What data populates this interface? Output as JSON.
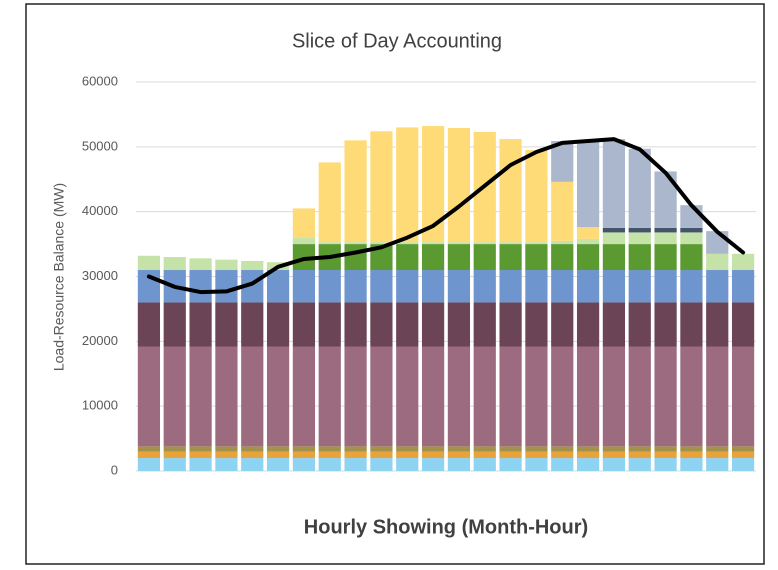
{
  "chart_data": {
    "type": "bar",
    "stacked": true,
    "title": "Slice of Day Accounting",
    "y_label": "Load-Resource Balance (MW)",
    "x_label": "Hourly Showing (Month-Hour)",
    "categories": [
      null,
      null,
      null,
      null,
      null,
      null,
      null,
      null,
      null,
      null,
      null,
      null,
      null,
      null,
      null,
      null,
      null,
      null,
      null,
      null,
      null,
      null,
      null,
      null
    ],
    "ylim": [
      0,
      60000
    ],
    "yticks": [
      0,
      10000,
      20000,
      30000,
      40000,
      50000,
      60000
    ],
    "grid": true,
    "series": [
      {
        "color": "#8fd3f2",
        "values": [
          2000,
          2000,
          2000,
          2000,
          2000,
          2000,
          2000,
          2000,
          2000,
          2000,
          2000,
          2000,
          2000,
          2000,
          2000,
          2000,
          2000,
          2000,
          2000,
          2000,
          2000,
          2000,
          2000,
          2000
        ]
      },
      {
        "color": "#e8a33a",
        "values": [
          1000,
          1000,
          1000,
          1000,
          1000,
          1000,
          1000,
          1000,
          1000,
          1000,
          1000,
          1000,
          1000,
          1000,
          1000,
          1000,
          1000,
          1000,
          1000,
          1000,
          1000,
          1000,
          1000,
          1000
        ]
      },
      {
        "color": "#a3924c",
        "values": [
          800,
          800,
          800,
          800,
          800,
          800,
          800,
          800,
          800,
          800,
          800,
          800,
          800,
          800,
          800,
          800,
          800,
          800,
          800,
          800,
          800,
          800,
          800,
          800
        ]
      },
      {
        "color": "#9c6b80",
        "values": [
          15400,
          15400,
          15400,
          15400,
          15400,
          15400,
          15400,
          15400,
          15400,
          15400,
          15400,
          15400,
          15400,
          15400,
          15400,
          15400,
          15400,
          15400,
          15400,
          15400,
          15400,
          15400,
          15400,
          15400
        ]
      },
      {
        "color": "#6b4455",
        "values": [
          6800,
          6800,
          6800,
          6800,
          6800,
          6800,
          6800,
          6800,
          6800,
          6800,
          6800,
          6800,
          6800,
          6800,
          6800,
          6800,
          6800,
          6800,
          6800,
          6800,
          6800,
          6800,
          6800,
          6800
        ]
      },
      {
        "color": "#6f95cf",
        "values": [
          5000,
          5000,
          5000,
          5000,
          5000,
          5000,
          5000,
          5000,
          5000,
          5000,
          5000,
          5000,
          5000,
          5000,
          5000,
          5000,
          5000,
          5000,
          5000,
          5000,
          5000,
          5000,
          5000,
          5000
        ]
      },
      {
        "color": "#5a9a30",
        "values": [
          0,
          0,
          0,
          0,
          0,
          0,
          4000,
          4000,
          4000,
          4000,
          4000,
          4000,
          4000,
          4000,
          4000,
          4000,
          4000,
          4000,
          4000,
          4000,
          4000,
          4000,
          0,
          0
        ]
      },
      {
        "color": "#c5e3a8",
        "values": [
          2200,
          2000,
          1800,
          1600,
          1400,
          1200,
          1000,
          300,
          300,
          300,
          300,
          300,
          300,
          300,
          300,
          300,
          500,
          800,
          1800,
          1800,
          1800,
          1800,
          2500,
          2500
        ]
      },
      {
        "color": "#ffdb77",
        "values": [
          0,
          0,
          0,
          0,
          0,
          0,
          4500,
          12300,
          15700,
          17100,
          17700,
          17900,
          17600,
          17000,
          15900,
          14200,
          9100,
          1800,
          0,
          0,
          0,
          0,
          0,
          0
        ]
      },
      {
        "color": "#44546a",
        "values": [
          0,
          0,
          0,
          0,
          0,
          0,
          0,
          0,
          0,
          0,
          0,
          0,
          0,
          0,
          0,
          0,
          0,
          0,
          700,
          700,
          700,
          700,
          0,
          0
        ]
      },
      {
        "color": "#aab7cc",
        "values": [
          0,
          0,
          0,
          0,
          0,
          0,
          0,
          0,
          0,
          0,
          0,
          0,
          0,
          0,
          0,
          0,
          6300,
          13400,
          13700,
          12200,
          8700,
          3500,
          3500,
          0
        ]
      }
    ],
    "line": {
      "color": "#000000",
      "values": [
        30000,
        28400,
        27600,
        27700,
        28900,
        31500,
        32700,
        33000,
        33700,
        34500,
        36000,
        37800,
        40800,
        44000,
        47200,
        49200,
        50600,
        50900,
        51200,
        49600,
        46000,
        41000,
        36900,
        33700
      ]
    }
  }
}
